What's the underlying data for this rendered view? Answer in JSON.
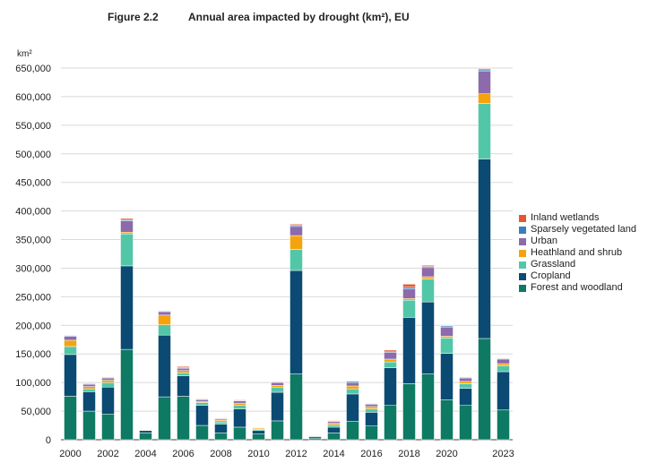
{
  "figure": {
    "label": "Figure 2.2",
    "title": "Annual area impacted by drought (km²), EU"
  },
  "chart_data": {
    "type": "bar",
    "stacked": true,
    "ylabel": "km²",
    "ylim": [
      0,
      650000
    ],
    "yticks": [
      0,
      50000,
      100000,
      150000,
      200000,
      250000,
      300000,
      350000,
      400000,
      450000,
      500000,
      550000,
      600000,
      650000
    ],
    "ytick_labels": [
      "0",
      "50,000",
      "100,000",
      "150,000",
      "200,000",
      "250,000",
      "300,000",
      "350,000",
      "400,000",
      "450,000",
      "500,000",
      "550,000",
      "600,000",
      "650,000"
    ],
    "categories": [
      "2000",
      "2001",
      "2002",
      "2003",
      "2004",
      "2005",
      "2006",
      "2007",
      "2008",
      "2009",
      "2010",
      "2011",
      "2012",
      "2013",
      "2014",
      "2015",
      "2016",
      "2017",
      "2018",
      "2019",
      "2020",
      "2021",
      "2022",
      "2023"
    ],
    "xtick_labels": [
      "2000",
      "",
      "2002",
      "",
      "2004",
      "",
      "2006",
      "",
      "2008",
      "",
      "2010",
      "",
      "2012",
      "",
      "2014",
      "",
      "2016",
      "",
      "2018",
      "",
      "2020",
      "",
      "",
      "2023"
    ],
    "legend_position": "right",
    "series": [
      {
        "name": "Forest and woodland",
        "color": "#0e7a63",
        "values": [
          76000,
          50000,
          45000,
          158000,
          12000,
          75000,
          76000,
          25000,
          12000,
          22000,
          10000,
          33000,
          115000,
          3000,
          12000,
          32000,
          24000,
          60000,
          98000,
          115000,
          70000,
          60000,
          177000,
          52000
        ]
      },
      {
        "name": "Cropland",
        "color": "#0b4a73",
        "values": [
          73000,
          34000,
          47000,
          146000,
          4000,
          108000,
          36000,
          35000,
          15000,
          32000,
          6000,
          50000,
          181000,
          2500,
          10000,
          48000,
          24000,
          66000,
          116000,
          126000,
          81000,
          30000,
          314000,
          67000
        ]
      },
      {
        "name": "Grassland",
        "color": "#52c7a8",
        "values": [
          14000,
          5000,
          8000,
          56000,
          1000,
          18000,
          5000,
          5000,
          4000,
          6000,
          2000,
          9000,
          37000,
          500,
          4000,
          9000,
          6000,
          10000,
          30000,
          40000,
          27000,
          8000,
          97000,
          10000
        ]
      },
      {
        "name": "Heathland and shrub",
        "color": "#f5a30d",
        "values": [
          11000,
          4000,
          4000,
          3000,
          500,
          17000,
          4000,
          2000,
          3000,
          4000,
          2000,
          3000,
          24000,
          500,
          3000,
          5000,
          4000,
          5000,
          3000,
          4000,
          3000,
          4000,
          17000,
          4000
        ]
      },
      {
        "name": "Urban",
        "color": "#8c6aab",
        "values": [
          7000,
          4000,
          4000,
          20000,
          500,
          6000,
          4000,
          3000,
          2000,
          4000,
          1000,
          5000,
          16000,
          500,
          3000,
          6000,
          4000,
          12000,
          17000,
          16000,
          16000,
          6000,
          40000,
          8000
        ]
      },
      {
        "name": "Sparsely vegetated land",
        "color": "#3a7ec1",
        "values": [
          1000,
          1000,
          1000,
          2000,
          500,
          1000,
          1000,
          1000,
          1000,
          1000,
          500,
          1000,
          2000,
          500,
          1000,
          2000,
          1000,
          2000,
          3000,
          2000,
          2000,
          1000,
          2000,
          1000
        ]
      },
      {
        "name": "Inland wetlands",
        "color": "#e4572e",
        "values": [
          1000,
          1000,
          1000,
          2000,
          500,
          1000,
          2000,
          1000,
          1000,
          1000,
          500,
          1000,
          2000,
          500,
          1000,
          1000,
          1000,
          2000,
          5000,
          2000,
          1000,
          1000,
          2000,
          1000
        ]
      }
    ]
  }
}
